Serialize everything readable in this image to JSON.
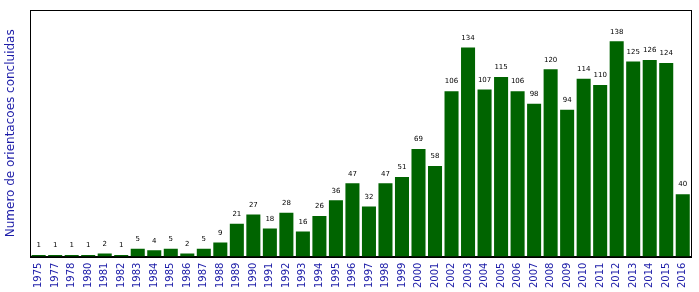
{
  "chart_data": {
    "type": "bar",
    "y_label": "Numero de orientacoes concluidas",
    "categories": [
      "1975",
      "1977",
      "1978",
      "1980",
      "1981",
      "1982",
      "1983",
      "1984",
      "1985",
      "1986",
      "1987",
      "1988",
      "1989",
      "1990",
      "1991",
      "1992",
      "1993",
      "1994",
      "1995",
      "1996",
      "1997",
      "1998",
      "1999",
      "2000",
      "2001",
      "2002",
      "2003",
      "2004",
      "2005",
      "2006",
      "2007",
      "2008",
      "2009",
      "2010",
      "2011",
      "2012",
      "2013",
      "2014",
      "2015",
      "2016"
    ],
    "values": [
      1,
      1,
      1,
      1,
      2,
      1,
      5,
      4,
      5,
      2,
      5,
      9,
      21,
      27,
      18,
      28,
      16,
      26,
      36,
      47,
      32,
      47,
      51,
      69,
      58,
      106,
      134,
      107,
      115,
      106,
      98,
      120,
      94,
      114,
      110,
      138,
      125,
      126,
      124,
      40
    ],
    "color": "#006400",
    "ylim": [
      0,
      158
    ],
    "tick_labels": "x",
    "data_labels": true,
    "grid": false
  }
}
